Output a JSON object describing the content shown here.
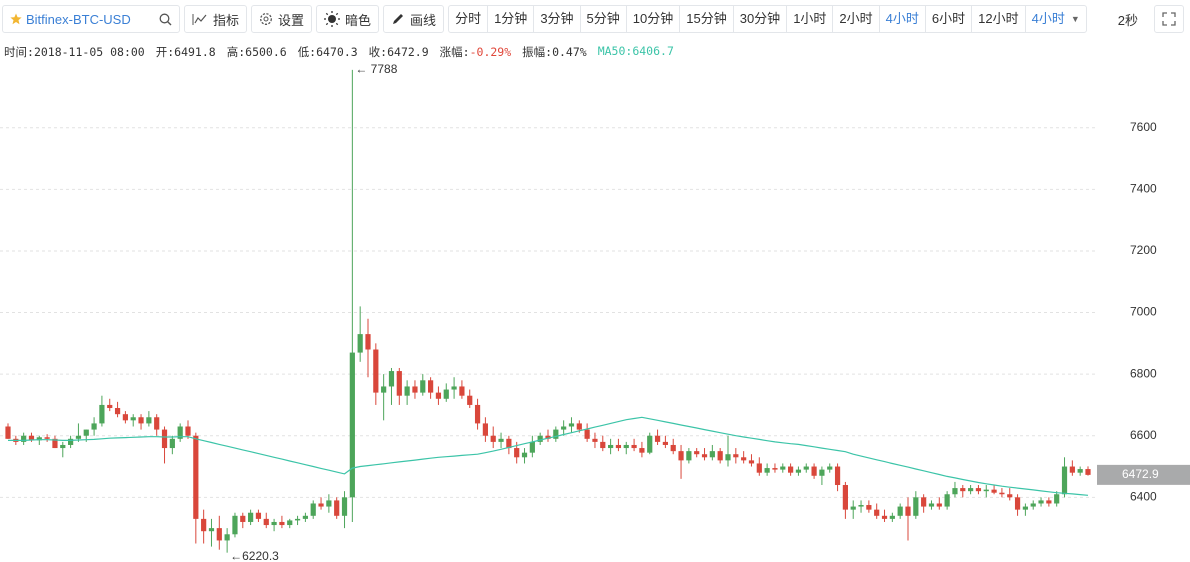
{
  "toolbar": {
    "symbol": "Bitfinex-BTC-USD",
    "tools": [
      "指标",
      "设置",
      "暗色",
      "画线"
    ],
    "intervals": [
      "分时",
      "1分钟",
      "3分钟",
      "5分钟",
      "10分钟",
      "15分钟",
      "30分钟",
      "1小时",
      "2小时",
      "4小时",
      "6小时",
      "12小时"
    ],
    "active_interval": "4小时",
    "dropdown": "4小时",
    "refresh": "2秒"
  },
  "info_bar": [
    {
      "label": "时间:",
      "value": "2018-11-05 08:00"
    },
    {
      "label": "开:",
      "value": "6491.8"
    },
    {
      "label": "高:",
      "value": "6500.6"
    },
    {
      "label": "低:",
      "value": "6470.3"
    },
    {
      "label": "收:",
      "value": "6472.9"
    },
    {
      "label": "涨幅:",
      "value": "-0.29%",
      "color": "#e0473a"
    },
    {
      "label": "振幅:",
      "value": "0.47%"
    },
    {
      "label": "MA50:",
      "value": "6406.7",
      "color": "#3cc4a8",
      "label_color": "#3cc4a8"
    }
  ],
  "chart_data": {
    "type": "candlestick",
    "ylim": [
      6190,
      7885
    ],
    "yticks": [
      6400,
      6600,
      6800,
      7000,
      7200,
      7400,
      7600
    ],
    "grid": true,
    "up_color": "#4da55a",
    "down_color": "#d9473b",
    "last_price": 6472.9,
    "annotations": [
      {
        "value": 7788,
        "label": "← 7788",
        "field": "high"
      },
      {
        "value": 6220.3,
        "label": "←6220.3",
        "field": "low"
      }
    ],
    "series": [
      {
        "type": "candlestick",
        "values": [
          [
            6630,
            6640,
            6590,
            6590
          ],
          [
            6590,
            6600,
            6570,
            6580
          ],
          [
            6580,
            6610,
            6570,
            6600
          ],
          [
            6600,
            6610,
            6580,
            6585
          ],
          [
            6585,
            6600,
            6570,
            6595
          ],
          [
            6595,
            6605,
            6580,
            6590
          ],
          [
            6590,
            6600,
            6560,
            6560
          ],
          [
            6560,
            6580,
            6530,
            6570
          ],
          [
            6570,
            6600,
            6560,
            6590
          ],
          [
            6590,
            6640,
            6580,
            6600
          ],
          [
            6600,
            6620,
            6580,
            6620
          ],
          [
            6620,
            6660,
            6600,
            6640
          ],
          [
            6640,
            6730,
            6630,
            6700
          ],
          [
            6700,
            6720,
            6680,
            6690
          ],
          [
            6690,
            6710,
            6660,
            6670
          ],
          [
            6670,
            6680,
            6640,
            6650
          ],
          [
            6650,
            6670,
            6630,
            6660
          ],
          [
            6660,
            6670,
            6620,
            6640
          ],
          [
            6640,
            6680,
            6630,
            6660
          ],
          [
            6660,
            6670,
            6600,
            6620
          ],
          [
            6620,
            6630,
            6510,
            6560
          ],
          [
            6560,
            6600,
            6540,
            6590
          ],
          [
            6590,
            6640,
            6580,
            6630
          ],
          [
            6630,
            6650,
            6590,
            6600
          ],
          [
            6600,
            6610,
            6250,
            6330
          ],
          [
            6330,
            6360,
            6250,
            6290
          ],
          [
            6290,
            6330,
            6240,
            6300
          ],
          [
            6300,
            6340,
            6230,
            6260
          ],
          [
            6260,
            6300,
            6220.3,
            6280
          ],
          [
            6280,
            6350,
            6270,
            6340
          ],
          [
            6340,
            6350,
            6300,
            6320
          ],
          [
            6320,
            6360,
            6310,
            6350
          ],
          [
            6350,
            6360,
            6320,
            6330
          ],
          [
            6330,
            6350,
            6300,
            6310
          ],
          [
            6310,
            6330,
            6290,
            6320
          ],
          [
            6320,
            6340,
            6300,
            6310
          ],
          [
            6310,
            6330,
            6300,
            6325
          ],
          [
            6325,
            6340,
            6310,
            6330
          ],
          [
            6330,
            6350,
            6320,
            6340
          ],
          [
            6340,
            6390,
            6330,
            6380
          ],
          [
            6380,
            6400,
            6360,
            6370
          ],
          [
            6370,
            6410,
            6350,
            6390
          ],
          [
            6390,
            6400,
            6330,
            6340
          ],
          [
            6340,
            6420,
            6300,
            6400
          ],
          [
            6400,
            7788,
            6320,
            6870
          ],
          [
            6870,
            7020,
            6840,
            6930
          ],
          [
            6930,
            6980,
            6790,
            6880
          ],
          [
            6880,
            6900,
            6700,
            6740
          ],
          [
            6740,
            6800,
            6650,
            6760
          ],
          [
            6760,
            6820,
            6700,
            6810
          ],
          [
            6810,
            6820,
            6700,
            6730
          ],
          [
            6730,
            6780,
            6700,
            6760
          ],
          [
            6760,
            6780,
            6720,
            6740
          ],
          [
            6740,
            6800,
            6730,
            6780
          ],
          [
            6780,
            6790,
            6720,
            6740
          ],
          [
            6740,
            6760,
            6700,
            6720
          ],
          [
            6720,
            6770,
            6710,
            6750
          ],
          [
            6750,
            6790,
            6720,
            6760
          ],
          [
            6760,
            6780,
            6720,
            6730
          ],
          [
            6730,
            6750,
            6690,
            6700
          ],
          [
            6700,
            6720,
            6620,
            6640
          ],
          [
            6640,
            6660,
            6580,
            6600
          ],
          [
            6600,
            6630,
            6560,
            6580
          ],
          [
            6580,
            6610,
            6560,
            6590
          ],
          [
            6590,
            6600,
            6540,
            6560
          ],
          [
            6560,
            6580,
            6510,
            6530
          ],
          [
            6530,
            6560,
            6510,
            6545
          ],
          [
            6545,
            6600,
            6530,
            6580
          ],
          [
            6580,
            6610,
            6570,
            6600
          ],
          [
            6600,
            6620,
            6580,
            6590
          ],
          [
            6590,
            6630,
            6580,
            6620
          ],
          [
            6620,
            6650,
            6600,
            6630
          ],
          [
            6630,
            6660,
            6610,
            6640
          ],
          [
            6640,
            6650,
            6610,
            6620
          ],
          [
            6620,
            6640,
            6580,
            6590
          ],
          [
            6590,
            6610,
            6560,
            6580
          ],
          [
            6580,
            6600,
            6550,
            6560
          ],
          [
            6560,
            6590,
            6540,
            6570
          ],
          [
            6570,
            6590,
            6550,
            6560
          ],
          [
            6560,
            6580,
            6540,
            6570
          ],
          [
            6570,
            6590,
            6550,
            6560
          ],
          [
            6560,
            6580,
            6530,
            6545
          ],
          [
            6545,
            6610,
            6540,
            6600
          ],
          [
            6600,
            6620,
            6570,
            6580
          ],
          [
            6580,
            6600,
            6560,
            6570
          ],
          [
            6570,
            6590,
            6540,
            6550
          ],
          [
            6550,
            6570,
            6460,
            6520
          ],
          [
            6520,
            6560,
            6510,
            6550
          ],
          [
            6550,
            6560,
            6530,
            6540
          ],
          [
            6540,
            6560,
            6520,
            6530
          ],
          [
            6530,
            6570,
            6520,
            6550
          ],
          [
            6550,
            6560,
            6510,
            6520
          ],
          [
            6520,
            6600,
            6500,
            6540
          ],
          [
            6540,
            6560,
            6510,
            6530
          ],
          [
            6530,
            6550,
            6510,
            6520
          ],
          [
            6520,
            6540,
            6500,
            6510
          ],
          [
            6510,
            6530,
            6470,
            6480
          ],
          [
            6480,
            6510,
            6470,
            6495
          ],
          [
            6495,
            6510,
            6480,
            6490
          ],
          [
            6490,
            6510,
            6480,
            6500
          ],
          [
            6500,
            6510,
            6470,
            6480
          ],
          [
            6480,
            6500,
            6470,
            6490
          ],
          [
            6490,
            6510,
            6480,
            6500
          ],
          [
            6500,
            6510,
            6460,
            6470
          ],
          [
            6470,
            6500,
            6440,
            6490
          ],
          [
            6490,
            6510,
            6480,
            6500
          ],
          [
            6500,
            6510,
            6420,
            6440
          ],
          [
            6440,
            6450,
            6330,
            6360
          ],
          [
            6360,
            6390,
            6330,
            6370
          ],
          [
            6370,
            6390,
            6350,
            6375
          ],
          [
            6375,
            6390,
            6350,
            6360
          ],
          [
            6360,
            6380,
            6330,
            6340
          ],
          [
            6340,
            6360,
            6320,
            6330
          ],
          [
            6330,
            6350,
            6320,
            6340
          ],
          [
            6340,
            6380,
            6330,
            6370
          ],
          [
            6370,
            6400,
            6260,
            6340
          ],
          [
            6340,
            6420,
            6330,
            6400
          ],
          [
            6400,
            6410,
            6350,
            6370
          ],
          [
            6370,
            6390,
            6360,
            6380
          ],
          [
            6380,
            6400,
            6360,
            6370
          ],
          [
            6370,
            6420,
            6360,
            6410
          ],
          [
            6410,
            6450,
            6400,
            6430
          ],
          [
            6430,
            6440,
            6400,
            6420
          ],
          [
            6420,
            6440,
            6410,
            6430
          ],
          [
            6430,
            6440,
            6410,
            6420
          ],
          [
            6420,
            6440,
            6400,
            6425
          ],
          [
            6425,
            6440,
            6410,
            6415
          ],
          [
            6415,
            6430,
            6400,
            6410
          ],
          [
            6410,
            6430,
            6390,
            6400
          ],
          [
            6400,
            6410,
            6340,
            6360
          ],
          [
            6360,
            6380,
            6340,
            6370
          ],
          [
            6370,
            6390,
            6360,
            6380
          ],
          [
            6380,
            6400,
            6370,
            6390
          ],
          [
            6390,
            6400,
            6370,
            6380
          ],
          [
            6380,
            6420,
            6370,
            6410
          ],
          [
            6410,
            6530,
            6400,
            6500
          ],
          [
            6500,
            6520,
            6470,
            6480
          ],
          [
            6480,
            6500,
            6470,
            6491.8
          ],
          [
            6491.8,
            6500.6,
            6470.3,
            6472.9
          ]
        ]
      },
      {
        "type": "line",
        "color": "#3cc4a8",
        "values": [
          6585,
          6585,
          6585,
          6586,
          6587,
          6587,
          6586,
          6585,
          6585,
          6586,
          6587,
          6588,
          6590,
          6592,
          6593,
          6594,
          6595,
          6596,
          6597,
          6597,
          6596,
          6596,
          6597,
          6597,
          6590,
          6584,
          6578,
          6572,
          6566,
          6560,
          6554,
          6548,
          6542,
          6536,
          6530,
          6524,
          6518,
          6512,
          6506,
          6500,
          6494,
          6488,
          6482,
          6476,
          6495,
          6500,
          6503,
          6506,
          6509,
          6512,
          6515,
          6518,
          6521,
          6524,
          6527,
          6530,
          6532,
          6534,
          6536,
          6538,
          6540,
          6545,
          6550,
          6556,
          6562,
          6568,
          6574,
          6580,
          6586,
          6592,
          6598,
          6604,
          6610,
          6616,
          6622,
          6628,
          6634,
          6640,
          6646,
          6652,
          6656,
          6660,
          6655,
          6650,
          6645,
          6640,
          6635,
          6630,
          6625,
          6620,
          6615,
          6610,
          6605,
          6600,
          6596,
          6592,
          6588,
          6584,
          6580,
          6577,
          6574,
          6572,
          6568,
          6564,
          6560,
          6556,
          6552,
          6548,
          6540,
          6534,
          6528,
          6522,
          6516,
          6510,
          6504,
          6498,
          6492,
          6486,
          6480,
          6474,
          6468,
          6463,
          6458,
          6453,
          6448,
          6444,
          6440,
          6436,
          6433,
          6430,
          6427,
          6424,
          6421,
          6418,
          6415,
          6413,
          6411,
          6409,
          6406.7
        ]
      }
    ]
  }
}
